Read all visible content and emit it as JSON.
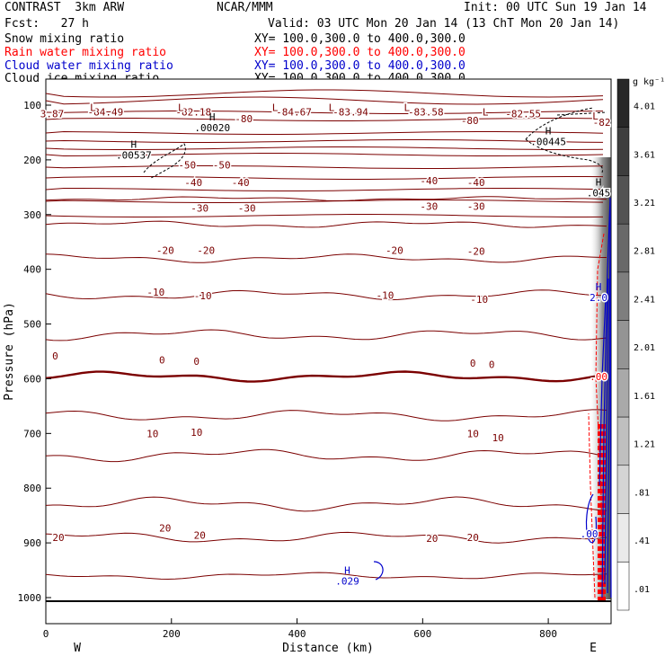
{
  "header": {
    "model": "CONTRAST  3km ARW",
    "center": "NCAR/MMM",
    "init": "Init: 00 UTC Sun 19 Jan 14",
    "fcst": "Fcst:   27 h",
    "valid": "Valid: 03 UTC Mon 20 Jan 14 (13 ChT Mon 20 Jan 14)"
  },
  "colors": {
    "snow": "#000000",
    "rain": "#ff0000",
    "cloud_water": "#0000cc",
    "cloud_ice": "#000000",
    "temperature": "#7b0000"
  },
  "chart_data": {
    "type": "cross-section",
    "xlabel": "Distance (km)",
    "ylabel": "Pressure (hPa)",
    "xlim": [
      0,
      900
    ],
    "ylim": [
      1000,
      100
    ],
    "x_ticks": [
      0,
      200,
      400,
      600,
      800
    ],
    "y_ticks": [
      100,
      200,
      300,
      400,
      500,
      600,
      700,
      800,
      900,
      1000
    ],
    "x_end_labels": [
      "W",
      "E"
    ],
    "series": [
      {
        "name": "Snow mixing ratio",
        "xy": "XY= 100.0,300.0 to 400.0,300.0"
      },
      {
        "name": "Rain water mixing ratio",
        "xy": "XY= 100.0,300.0 to 400.0,300.0"
      },
      {
        "name": "Cloud water mixing ratio",
        "xy": "XY= 100.0,300.0 to 400.0,300.0"
      },
      {
        "name": "Cloud ice mixing ratio",
        "xy": "XY= 100.0,300.0 to 400.0,300.0"
      }
    ],
    "colorbar": {
      "unit": "g kg⁻¹",
      "labels": [
        "4.01",
        "3.61",
        "3.21",
        "2.81",
        "2.41",
        "2.01",
        "1.61",
        "1.21",
        ".81",
        ".41",
        ".01"
      ]
    },
    "temperature_labels": [
      {
        "x": 10,
        "p": 116,
        "text": "3.87"
      },
      {
        "x": 95,
        "p": 112,
        "text": "-84.49"
      },
      {
        "x": 235,
        "p": 112,
        "text": "-82.18"
      },
      {
        "x": 315,
        "p": 125,
        "text": "-80"
      },
      {
        "x": 395,
        "p": 112,
        "text": "-84.67"
      },
      {
        "x": 485,
        "p": 112,
        "text": "-83.94"
      },
      {
        "x": 605,
        "p": 112,
        "text": "-83.58"
      },
      {
        "x": 675,
        "p": 128,
        "text": "-80"
      },
      {
        "x": 760,
        "p": 116,
        "text": "-82.55"
      },
      {
        "x": 885,
        "p": 131,
        "text": "-82"
      },
      {
        "x": 225,
        "p": 209,
        "text": "-50"
      },
      {
        "x": 280,
        "p": 209,
        "text": "-50"
      },
      {
        "x": 235,
        "p": 241,
        "text": "-40"
      },
      {
        "x": 310,
        "p": 241,
        "text": "-40"
      },
      {
        "x": 610,
        "p": 238,
        "text": "-40"
      },
      {
        "x": 685,
        "p": 241,
        "text": "-40"
      },
      {
        "x": 245,
        "p": 288,
        "text": "-30"
      },
      {
        "x": 320,
        "p": 288,
        "text": "-30"
      },
      {
        "x": 610,
        "p": 285,
        "text": "-30"
      },
      {
        "x": 685,
        "p": 285,
        "text": "-30"
      },
      {
        "x": 190,
        "p": 365,
        "text": "-20"
      },
      {
        "x": 255,
        "p": 365,
        "text": "-20"
      },
      {
        "x": 555,
        "p": 365,
        "text": "-20"
      },
      {
        "x": 685,
        "p": 367,
        "text": "-20"
      },
      {
        "x": 175,
        "p": 442,
        "text": "-10"
      },
      {
        "x": 250,
        "p": 448,
        "text": "-10"
      },
      {
        "x": 540,
        "p": 447,
        "text": "-10"
      },
      {
        "x": 690,
        "p": 455,
        "text": "-10"
      },
      {
        "x": 15,
        "p": 558,
        "text": "0"
      },
      {
        "x": 185,
        "p": 566,
        "text": "0"
      },
      {
        "x": 240,
        "p": 568,
        "text": "0"
      },
      {
        "x": 680,
        "p": 571,
        "text": "0"
      },
      {
        "x": 710,
        "p": 574,
        "text": "0"
      },
      {
        "x": 170,
        "p": 700,
        "text": "10"
      },
      {
        "x": 240,
        "p": 698,
        "text": "10"
      },
      {
        "x": 680,
        "p": 700,
        "text": "10"
      },
      {
        "x": 720,
        "p": 708,
        "text": "10"
      },
      {
        "x": 20,
        "p": 890,
        "text": "20"
      },
      {
        "x": 190,
        "p": 873,
        "text": "20"
      },
      {
        "x": 245,
        "p": 886,
        "text": "20"
      },
      {
        "x": 615,
        "p": 892,
        "text": "20"
      },
      {
        "x": 680,
        "p": 890,
        "text": "20"
      }
    ],
    "extrema": [
      {
        "x": 265,
        "p": 138,
        "mark": "H",
        "value": ".00020",
        "color": "#000000"
      },
      {
        "x": 140,
        "p": 188,
        "mark": "H",
        "value": ".00537",
        "color": "#000000"
      },
      {
        "x": 800,
        "p": 163,
        "mark": "H",
        "value": ".00445",
        "color": "#000000"
      },
      {
        "x": 880,
        "p": 257,
        "mark": "H",
        "value": ".045",
        "color": "#000000"
      },
      {
        "x": 880,
        "p": 448,
        "mark": "H",
        "value": "2.0",
        "color": "#0000cc"
      },
      {
        "x": 880,
        "p": 593,
        "mark": "",
        "value": ".00",
        "color": "#ff0000"
      },
      {
        "x": 865,
        "p": 880,
        "mark": "",
        "value": ".00",
        "color": "#0000cc"
      },
      {
        "x": 480,
        "p": 966,
        "mark": "H",
        "value": ".029",
        "color": "#0000cc"
      }
    ],
    "low_marks": [
      {
        "x": 75,
        "p": 104,
        "text": "L"
      },
      {
        "x": 215,
        "p": 104,
        "text": "L"
      },
      {
        "x": 365,
        "p": 104,
        "text": "L"
      },
      {
        "x": 455,
        "p": 104,
        "text": "L"
      },
      {
        "x": 575,
        "p": 104,
        "text": "L"
      },
      {
        "x": 700,
        "p": 112,
        "text": "L"
      },
      {
        "x": 875,
        "p": 120,
        "text": "L"
      }
    ]
  }
}
